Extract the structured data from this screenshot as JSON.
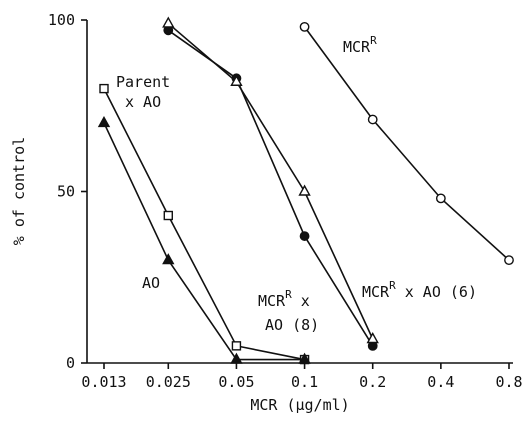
{
  "chart_data": {
    "type": "line",
    "x_scale": "log",
    "x_ticks": [
      "0.013",
      "0.025",
      "0.05",
      "0.1",
      "0.2",
      "0.4",
      "0.8"
    ],
    "x_tick_values": [
      0.013,
      0.025,
      0.05,
      0.1,
      0.2,
      0.4,
      0.8
    ],
    "y_ticks": [
      "0",
      "50",
      "100"
    ],
    "y_tick_values": [
      0,
      50,
      100
    ],
    "xlim": [
      0.013,
      0.8
    ],
    "ylim": [
      0,
      100
    ],
    "xlabel": "MCR (μg/ml)",
    "ylabel": "% of control",
    "grid": false,
    "series": [
      {
        "name": "Parent x AO",
        "marker": "open-square",
        "x": [
          0.013,
          0.025,
          0.05,
          0.1
        ],
        "y": [
          80,
          43,
          5,
          1
        ]
      },
      {
        "name": "AO",
        "marker": "filled-triangle",
        "x": [
          0.013,
          0.025,
          0.05,
          0.1
        ],
        "y": [
          70,
          30,
          1,
          1
        ]
      },
      {
        "name": "MCR^R x AO (8)",
        "marker": "filled-circle",
        "x": [
          0.025,
          0.05,
          0.1,
          0.2
        ],
        "y": [
          97,
          83,
          37,
          5
        ]
      },
      {
        "name": "MCR^R x AO (6)",
        "marker": "open-triangle",
        "x": [
          0.025,
          0.05,
          0.1,
          0.2
        ],
        "y": [
          99,
          82,
          50,
          7
        ]
      },
      {
        "name": "MCR^R",
        "marker": "open-circle",
        "x": [
          0.1,
          0.2,
          0.4,
          0.8
        ],
        "y": [
          98,
          71,
          48,
          30
        ]
      }
    ],
    "annotations": {
      "parent_line1": "Parent",
      "parent_line2": "x AO",
      "ao": "AO",
      "mcr8_line1_base": "MCR",
      "mcr8_line1_sup": "R",
      "mcr8_line1_tail": " x",
      "mcr8_line2": "AO (8)",
      "mcr6_base": "MCR",
      "mcr6_sup": "R",
      "mcr6_tail": " x AO (6)",
      "mcr_base": "MCR",
      "mcr_sup": "R"
    }
  }
}
